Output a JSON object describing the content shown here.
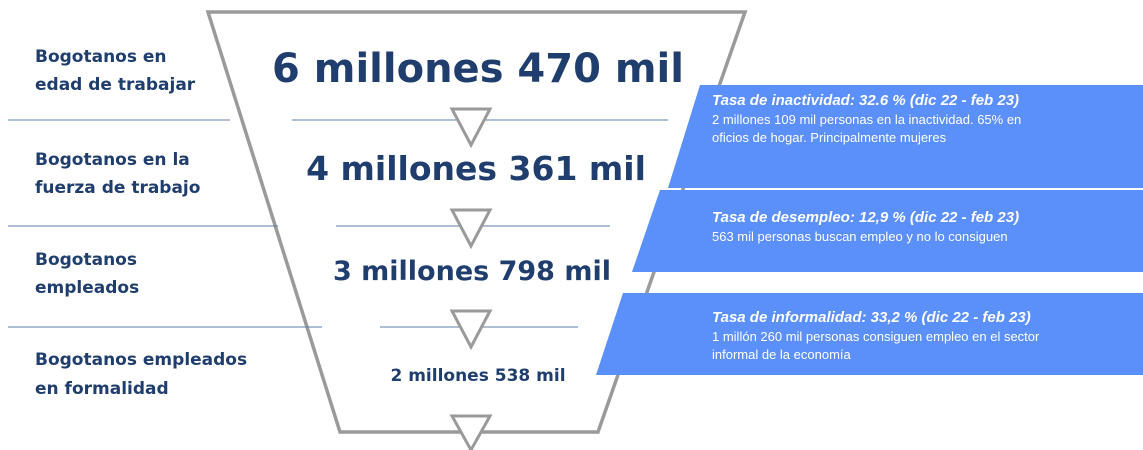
{
  "levels": [
    {
      "label": [
        "Bogotanos en",
        "edad de trabajar"
      ],
      "value": "6 millones 470 mil"
    },
    {
      "label": [
        "Bogotanos en la",
        "fuerza de trabajo"
      ],
      "value": "4 millones 361 mil"
    },
    {
      "label": [
        "Bogotanos",
        "empleados"
      ],
      "value": "3 millones 798 mil"
    },
    {
      "label": [
        "Bogotanos empleados",
        "en formalidad"
      ],
      "value": "2 millones 538 mil"
    }
  ],
  "notes": [
    {
      "title": "Tasa de inactividad: 32.6 % (dic 22 - feb 23)",
      "text": [
        "2 millones 109 mil personas en la inactividad. 65% en",
        "oficios de hogar. Principalmente mujeres"
      ]
    },
    {
      "title": "Tasa de desempleo: 12,9 % (dic 22 - feb 23)",
      "text": [
        "563 mil personas buscan empleo y no lo consiguen"
      ]
    },
    {
      "title": "Tasa de informalidad: 33,2 % (dic 22 - feb 23)",
      "text": [
        "1 millón 260 mil personas consiguen empleo en el sector",
        "informal de la economía"
      ]
    }
  ]
}
